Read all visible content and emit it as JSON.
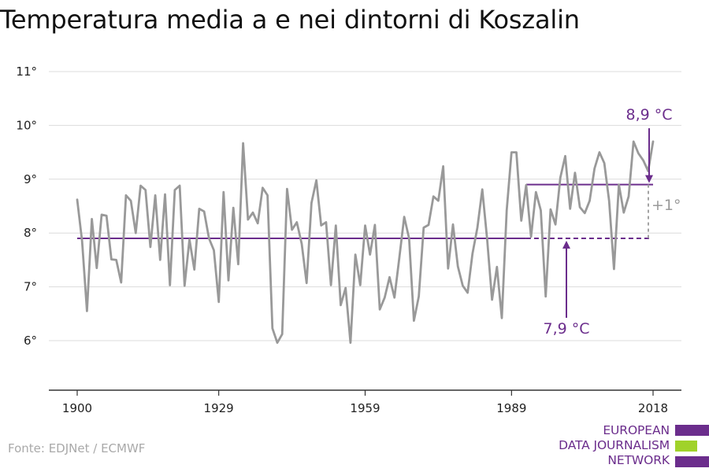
{
  "title": "Temperatura media a e nei dintorni di Koszalin",
  "source": "Fonte: EDJNet / ECMWF",
  "logo": {
    "lines": [
      "EUROPEAN",
      "DATA JOURNALISM",
      "NETWORK"
    ],
    "bar_colors": [
      "#6b2d8c",
      "#a0d22a",
      "#6b2d8c"
    ]
  },
  "colors": {
    "series": "#999999",
    "accent": "#6b2d8c",
    "grid": "#dcdcdc",
    "axis": "#333333",
    "delta": "#a3a3a3"
  },
  "annotations": {
    "recent_label": "8,9 °C",
    "baseline_label": "7,9 °C",
    "delta_label": "+1°"
  },
  "chart_data": {
    "type": "line",
    "title": "Temperatura media a e nei dintorni di Koszalin",
    "x_ticks": [
      1900,
      1929,
      1959,
      1989,
      2018
    ],
    "y_ticks": [
      6,
      7,
      8,
      9,
      10,
      11
    ],
    "y_tick_labels": [
      "6°",
      "7°",
      "8°",
      "9°",
      "10°",
      "11°"
    ],
    "xlim": [
      1900,
      2018
    ],
    "ylim": [
      5,
      11
    ],
    "grid": true,
    "baseline": {
      "value": 7.9,
      "from": 1900,
      "to": 2018,
      "dashed_from": 1992
    },
    "recent_average": {
      "value": 8.9,
      "from": 1992,
      "to": 2018
    },
    "series": [
      {
        "x": [
          1900,
          1901,
          1902,
          1903,
          1904,
          1905,
          1906,
          1907,
          1908,
          1909,
          1910,
          1911,
          1912,
          1913,
          1914,
          1915,
          1916,
          1917,
          1918,
          1919,
          1920,
          1921,
          1922,
          1923,
          1924,
          1925,
          1926,
          1927,
          1928,
          1929,
          1930,
          1931,
          1932,
          1933,
          1934,
          1935,
          1936,
          1937,
          1938,
          1939,
          1940,
          1941,
          1942,
          1943,
          1944,
          1945,
          1946,
          1947,
          1948,
          1949,
          1950,
          1951,
          1952,
          1953,
          1954,
          1955,
          1956,
          1957,
          1958,
          1959,
          1960,
          1961,
          1962,
          1963,
          1964,
          1965,
          1966,
          1967,
          1968,
          1969,
          1970,
          1971,
          1972,
          1973,
          1974,
          1975,
          1976,
          1977,
          1978,
          1979,
          1980,
          1981,
          1982,
          1983,
          1984,
          1985,
          1986,
          1987,
          1988,
          1989,
          1990,
          1991,
          1992,
          1993,
          1994,
          1995,
          1996,
          1997,
          1998,
          1999,
          2000,
          2001,
          2002,
          2003,
          2004,
          2005,
          2006,
          2007,
          2008,
          2009,
          2010,
          2011,
          2012,
          2013,
          2014,
          2015,
          2016,
          2017,
          2018
        ],
        "values": [
          8.62,
          7.85,
          6.55,
          8.26,
          7.35,
          8.34,
          8.32,
          7.51,
          7.5,
          7.08,
          8.7,
          8.6,
          8.0,
          8.88,
          8.8,
          7.74,
          8.7,
          7.5,
          8.72,
          7.03,
          8.8,
          8.88,
          7.02,
          7.88,
          7.32,
          8.45,
          8.4,
          7.9,
          7.68,
          6.72,
          8.76,
          7.12,
          8.47,
          7.42,
          9.67,
          8.25,
          8.38,
          8.18,
          8.84,
          8.7,
          6.23,
          5.96,
          6.12,
          8.82,
          8.06,
          8.2,
          7.8,
          7.07,
          8.56,
          8.98,
          8.14,
          8.2,
          7.03,
          8.14,
          6.66,
          6.98,
          5.96,
          7.6,
          7.03,
          8.14,
          7.6,
          8.15,
          6.58,
          6.8,
          7.18,
          6.8,
          7.54,
          8.3,
          7.9,
          6.37,
          6.82,
          8.1,
          8.15,
          8.68,
          8.6,
          9.24,
          7.34,
          8.16,
          7.38,
          7.02,
          6.89,
          7.62,
          8.1,
          8.81,
          7.88,
          6.76,
          7.37,
          6.42,
          8.42,
          9.5,
          9.5,
          8.23,
          8.89,
          7.93,
          8.76,
          8.42,
          6.82,
          8.44,
          8.16,
          9.03,
          9.43,
          8.45,
          9.12,
          8.48,
          8.37,
          8.6,
          9.2,
          9.5,
          9.3,
          8.6,
          7.33,
          8.9,
          8.38,
          8.68,
          9.7,
          9.48,
          9.35,
          9.15,
          9.7
        ]
      }
    ]
  }
}
